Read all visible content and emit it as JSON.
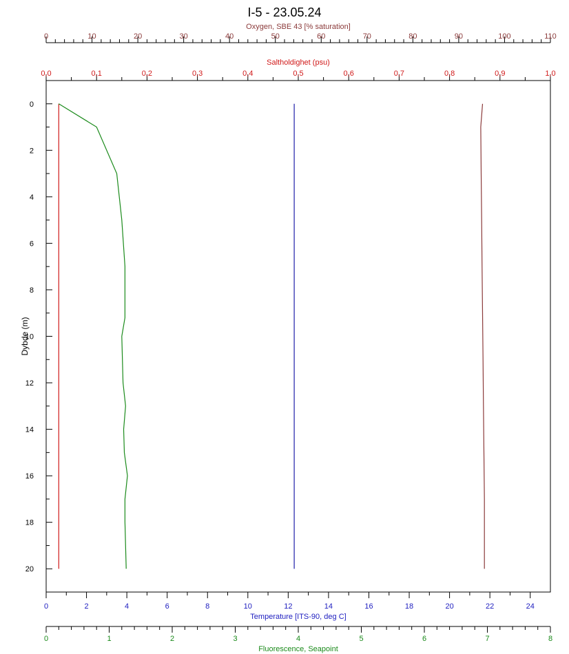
{
  "chart_data": {
    "type": "line",
    "title": "I-5 - 23.05.24",
    "grid": false,
    "legend": "none",
    "y_axis": {
      "label": "Dybde (m)",
      "range": [
        21,
        -1
      ],
      "ticks": [
        0,
        2,
        4,
        6,
        8,
        10,
        12,
        14,
        16,
        18,
        20
      ],
      "tick_labels": [
        "0",
        "2",
        "4",
        "6",
        "8",
        "10",
        "12",
        "14",
        "16",
        "18",
        "20"
      ],
      "color": "#000000"
    },
    "axes": {
      "oxygen": {
        "label": "Oxygen, SBE 43 [% saturation]",
        "range": [
          0,
          110
        ],
        "ticks": [
          0,
          10,
          20,
          30,
          40,
          50,
          60,
          70,
          80,
          90,
          100,
          110
        ],
        "tick_labels": [
          "0",
          "10",
          "20",
          "30",
          "40",
          "50",
          "60",
          "70",
          "80",
          "90",
          "100",
          "110"
        ],
        "color": "#8b3a3a"
      },
      "salinity": {
        "label": "Saltholdighet (psu)",
        "range": [
          0,
          1
        ],
        "ticks": [
          0,
          0.1,
          0.2,
          0.3,
          0.4,
          0.5,
          0.6,
          0.7,
          0.8,
          0.9,
          1.0
        ],
        "tick_labels": [
          "0,0",
          "0,1",
          "0,2",
          "0,3",
          "0,4",
          "0,5",
          "0,6",
          "0,7",
          "0,8",
          "0,9",
          "1,0"
        ],
        "color": "#d01818"
      },
      "temperature": {
        "label": "Temperature [ITS-90, deg C]",
        "range": [
          0,
          25
        ],
        "ticks": [
          0,
          2,
          4,
          6,
          8,
          10,
          12,
          14,
          16,
          18,
          20,
          22,
          24
        ],
        "tick_labels": [
          "0",
          "2",
          "4",
          "6",
          "8",
          "10",
          "12",
          "14",
          "16",
          "18",
          "20",
          "22",
          "24"
        ],
        "color": "#2020c0"
      },
      "fluorescence": {
        "label": "Fluorescence, Seapoint",
        "range": [
          0,
          8
        ],
        "ticks": [
          0,
          1,
          2,
          3,
          4,
          5,
          6,
          7,
          8
        ],
        "tick_labels": [
          "0",
          "1",
          "2",
          "3",
          "4",
          "5",
          "6",
          "7",
          "8"
        ],
        "color": "#1a8a1a"
      }
    },
    "series": [
      {
        "axis": "salinity",
        "color": "#d01818",
        "x": [
          0.025,
          0.025
        ],
        "y": [
          0,
          20
        ]
      },
      {
        "axis": "temperature",
        "color": "#1c1ca8",
        "x": [
          12.3,
          12.3
        ],
        "y": [
          0,
          20
        ]
      },
      {
        "axis": "oxygen",
        "color": "#8b3a3a",
        "x": [
          95.2,
          94.8,
          94.9,
          95.0,
          95.1,
          95.2,
          95.3,
          95.4,
          95.5,
          95.6,
          95.6
        ],
        "y": [
          0,
          1,
          3,
          5,
          7,
          9,
          11,
          13,
          15,
          17,
          20
        ]
      },
      {
        "axis": "fluorescence",
        "color": "#1a8a1a",
        "x": [
          0.2,
          0.8,
          1.12,
          1.2,
          1.25,
          1.25,
          1.2,
          1.22,
          1.26,
          1.23,
          1.24,
          1.29,
          1.25,
          1.25,
          1.27
        ],
        "y": [
          0,
          1,
          3,
          5,
          7,
          9.2,
          10,
          12,
          13,
          14,
          15,
          16,
          17,
          18,
          20
        ]
      }
    ]
  }
}
